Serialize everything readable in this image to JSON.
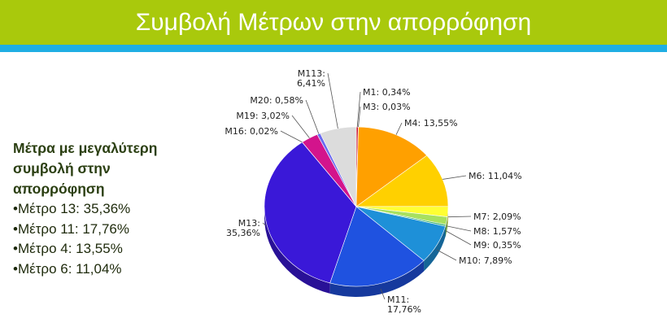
{
  "header": {
    "title": "Συμβολή Μέτρων στην απορρόφηση",
    "bar_color": "#a9c90c",
    "stripe_color": "#1faee3"
  },
  "side_panel": {
    "heading": "Μέτρα με  μεγαλύτερη\nσυμβολή στην\nαπορρόφηση",
    "items": [
      "•Μέτρο 13: 35,36%",
      "•Μέτρο 11: 17,76%",
      "•Μέτρο 4: 13,55%",
      "•Μέτρο 6: 11,04%"
    ]
  },
  "chart_data": {
    "type": "pie",
    "style": "3d",
    "start": "top, clockwise",
    "slices": [
      {
        "name": "M1",
        "value": 0.34,
        "label": [
          "M1: 0,34%"
        ],
        "color": "#c8102e"
      },
      {
        "name": "M3",
        "value": 0.03,
        "label": [
          "M3: 0,03%"
        ],
        "color": "#d9534f"
      },
      {
        "name": "M4",
        "value": 13.55,
        "label": [
          "M4: 13,55%"
        ],
        "color": "#ffa000"
      },
      {
        "name": "M6",
        "value": 11.04,
        "label": [
          "M6: 11,04%"
        ],
        "color": "#ffd000"
      },
      {
        "name": "M7",
        "value": 2.09,
        "label": [
          "M7: 2,09%"
        ],
        "color": "#ffff33"
      },
      {
        "name": "M8",
        "value": 1.57,
        "label": [
          "M8: 1,57%"
        ],
        "color": "#a8e05f"
      },
      {
        "name": "M9",
        "value": 0.35,
        "label": [
          "M9: 0,35%"
        ],
        "color": "#3cb371"
      },
      {
        "name": "M10",
        "value": 7.89,
        "label": [
          "M10: 7,89%"
        ],
        "color": "#1e90d8"
      },
      {
        "name": "M11",
        "value": 17.76,
        "label": [
          "M11:",
          "17,76%"
        ],
        "color": "#1f52e0"
      },
      {
        "name": "M13",
        "value": 35.36,
        "label": [
          "M13:",
          "35,36%"
        ],
        "color": "#3a18d8"
      },
      {
        "name": "M16",
        "value": 0.02,
        "label": [
          "M16: 0,02%"
        ],
        "color": "#7a2be0"
      },
      {
        "name": "M19",
        "value": 3.02,
        "label": [
          "M19: 3,02%"
        ],
        "color": "#d3148c"
      },
      {
        "name": "M20",
        "value": 0.58,
        "label": [
          "M20: 0,58%"
        ],
        "color": "#6a6af0"
      },
      {
        "name": "M113",
        "value": 6.41,
        "label": [
          "M113:",
          "6,41%"
        ],
        "color": "#dcdcdc"
      }
    ]
  }
}
